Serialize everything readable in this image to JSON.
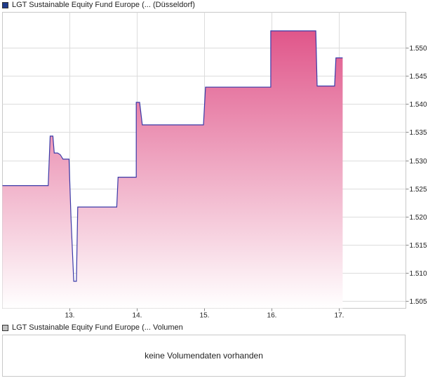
{
  "legend": {
    "price_label": "LGT Sustainable Equity Fund Europe (... (Düsseldorf)",
    "price_color": "#1f3b8c",
    "volume_label": "LGT Sustainable Equity Fund Europe (... Volumen",
    "volume_color": "#c0c0c0"
  },
  "volume": {
    "message": "keine Volumendaten vorhanden"
  },
  "chart_data": {
    "type": "area",
    "title": "",
    "xlabel": "",
    "ylabel": "",
    "x_ticks": [
      "13.",
      "14.",
      "15.",
      "16.",
      "17."
    ],
    "x_tick_positions": [
      13,
      14,
      15,
      16,
      17
    ],
    "xlim": [
      12,
      18
    ],
    "y_ticks": [
      "1.505",
      "1.510",
      "1.515",
      "1.520",
      "1.525",
      "1.530",
      "1.535",
      "1.540",
      "1.545",
      "1.550"
    ],
    "ylim": [
      1.5037,
      1.5563
    ],
    "grid": true,
    "y_axis_side": "right",
    "line_color": "#3a3aa8",
    "fill_top_color": "#e0568a",
    "fill_bottom_color": "#ffffff",
    "series": [
      {
        "x": [
          12.0,
          12.68,
          12.71,
          12.75,
          12.77,
          12.82,
          12.86,
          12.9,
          12.99,
          13.02,
          13.06,
          13.1,
          13.12,
          13.7,
          13.72,
          13.99,
          13.99,
          14.04,
          14.08,
          14.99,
          15.02,
          15.99,
          15.99,
          16.66,
          16.68,
          16.94,
          16.96,
          17.06
        ],
        "y": [
          1.5255,
          1.5255,
          1.5343,
          1.5343,
          1.5313,
          1.5313,
          1.531,
          1.5302,
          1.5302,
          1.5197,
          1.5085,
          1.5085,
          1.5217,
          1.5217,
          1.527,
          1.527,
          1.5403,
          1.5403,
          1.5363,
          1.5363,
          1.543,
          1.543,
          1.553,
          1.553,
          1.5432,
          1.5432,
          1.5482,
          1.5482
        ]
      }
    ]
  }
}
